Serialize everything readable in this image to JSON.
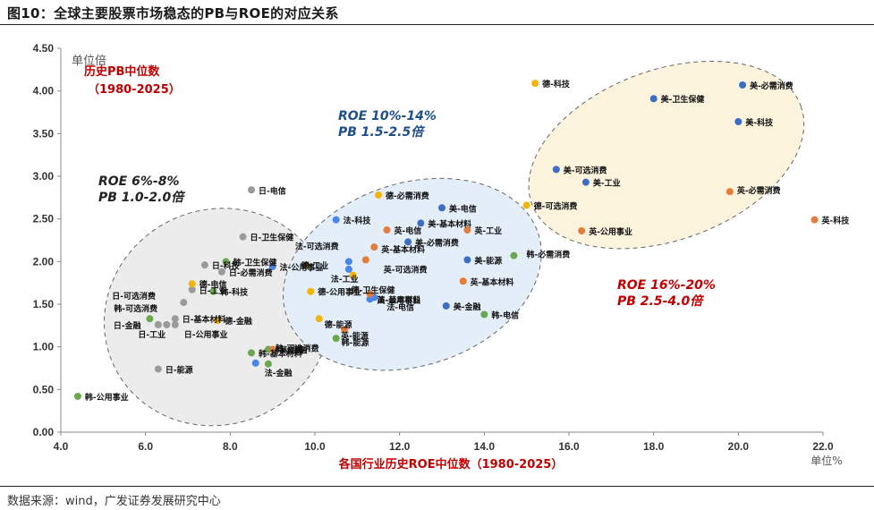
{
  "header": {
    "title": "图10：全球主要股票市场稳态的PB与ROE的对应关系"
  },
  "footer": {
    "source": "数据来源：wind，广发证券发展研究中心"
  },
  "colors": {
    "日": "#9a9a9a",
    "韩": "#6aa84f",
    "德": "#f4b400",
    "法": "#4a86e8",
    "英": "#e67c3a",
    "美": "#3c6fc4",
    "ellipse_low_fill": "#ececec",
    "ellipse_mid_fill": "#e3eef9",
    "ellipse_high_fill": "#fbf3dc"
  },
  "chart_data": {
    "type": "scatter",
    "xlabel": "各国行业历史ROE中位数（1980-2025）",
    "xunit": "单位%",
    "yunit": "单位倍",
    "xlim": [
      4.0,
      22.0
    ],
    "ylim": [
      0.0,
      4.5
    ],
    "xticks": [
      "4.0",
      "6.0",
      "8.0",
      "10.0",
      "12.0",
      "14.0",
      "16.0",
      "18.0",
      "20.0",
      "22.0"
    ],
    "yticks": [
      "0.00",
      "0.50",
      "1.00",
      "1.50",
      "2.00",
      "2.50",
      "3.00",
      "3.50",
      "4.00",
      "4.50"
    ],
    "grid": false,
    "annotations": {
      "history": [
        "历史PB中位数",
        "（1980-2025）"
      ],
      "zone_low": [
        "ROE  6%-8%",
        "PB  1.0-2.0倍"
      ],
      "zone_mid": [
        "ROE  10%-14%",
        "PB  1.5-2.5倍"
      ],
      "zone_high": [
        "ROE  16%-20%",
        "PB  2.5-4.0倍"
      ]
    },
    "points": [
      {
        "label": "日-电信",
        "country": "日",
        "x": 8.5,
        "y": 2.84
      },
      {
        "label": "日-卫生保健",
        "country": "日",
        "x": 8.3,
        "y": 2.29
      },
      {
        "label": "日-科技",
        "country": "日",
        "x": 7.4,
        "y": 1.96
      },
      {
        "label": "日-必需消费",
        "country": "日",
        "x": 7.8,
        "y": 1.88
      },
      {
        "label": "日-工业",
        "country": "日",
        "x": 7.1,
        "y": 1.67
      },
      {
        "label": "日-可选消费",
        "country": "日",
        "x": 6.9,
        "y": 1.52
      },
      {
        "label": "日-金融",
        "country": "日",
        "x": 6.3,
        "y": 1.26
      },
      {
        "label": "日-工业",
        "country": "日",
        "x": 6.5,
        "y": 1.26
      },
      {
        "label": "日-基本材料",
        "country": "日",
        "x": 6.7,
        "y": 1.33
      },
      {
        "label": "日-公用事业",
        "country": "日",
        "x": 6.7,
        "y": 1.26
      },
      {
        "label": "日-能源",
        "country": "日",
        "x": 6.3,
        "y": 0.74
      },
      {
        "label": "韩-卫生保健",
        "country": "韩",
        "x": 7.9,
        "y": 2.0
      },
      {
        "label": "韩-科技",
        "country": "韩",
        "x": 7.6,
        "y": 1.65
      },
      {
        "label": "韩-可选消费",
        "country": "韩",
        "x": 6.1,
        "y": 1.33
      },
      {
        "label": "韩-基本材料",
        "country": "韩",
        "x": 8.5,
        "y": 0.93
      },
      {
        "label": "韩-金融",
        "country": "韩",
        "x": 8.9,
        "y": 0.97
      },
      {
        "label": "韩-可选消费",
        "country": "韩",
        "x": 8.9,
        "y": 0.8
      },
      {
        "label": "韩-能源",
        "country": "韩",
        "x": 10.5,
        "y": 1.1
      },
      {
        "label": "韩-电信",
        "country": "韩",
        "x": 14.0,
        "y": 1.38
      },
      {
        "label": "韩-必需消费",
        "country": "韩",
        "x": 14.7,
        "y": 2.07
      },
      {
        "label": "韩-公用事业",
        "country": "韩",
        "x": 4.4,
        "y": 0.42
      },
      {
        "label": "德-电信",
        "country": "德",
        "x": 7.1,
        "y": 1.74
      },
      {
        "label": "德-金融",
        "country": "德",
        "x": 7.7,
        "y": 1.31
      },
      {
        "label": "德-工业",
        "country": "德",
        "x": 9.8,
        "y": 1.96
      },
      {
        "label": "德-公用事业",
        "country": "德",
        "x": 9.9,
        "y": 1.65
      },
      {
        "label": "德-能源",
        "country": "德",
        "x": 10.1,
        "y": 1.33
      },
      {
        "label": "德-必需消费",
        "country": "德",
        "x": 11.5,
        "y": 2.78
      },
      {
        "label": "德-卫生保健",
        "country": "德",
        "x": 10.9,
        "y": 1.84
      },
      {
        "label": "德-可选消费",
        "country": "德",
        "x": 15.0,
        "y": 2.66
      },
      {
        "label": "德-科技",
        "country": "德",
        "x": 15.2,
        "y": 4.09
      },
      {
        "label": "法-公用事业",
        "country": "法",
        "x": 9.0,
        "y": 1.94
      },
      {
        "label": "法-金融",
        "country": "法",
        "x": 8.6,
        "y": 0.81
      },
      {
        "label": "法-科技",
        "country": "法",
        "x": 10.5,
        "y": 2.49
      },
      {
        "label": "法-可选消费",
        "country": "法",
        "x": 10.8,
        "y": 2.0
      },
      {
        "label": "法-工业",
        "country": "法",
        "x": 10.8,
        "y": 1.91
      },
      {
        "label": "法-基本材料",
        "country": "法",
        "x": 11.3,
        "y": 1.56
      },
      {
        "label": "法-电信",
        "country": "法",
        "x": 11.4,
        "y": 1.58
      },
      {
        "label": "英-电信",
        "country": "英",
        "x": 11.7,
        "y": 2.37
      },
      {
        "label": "英-基本材料",
        "country": "英",
        "x": 11.4,
        "y": 2.17
      },
      {
        "label": "英-可选消费",
        "country": "英",
        "x": 11.2,
        "y": 2.02
      },
      {
        "label": "英-公用事业",
        "country": "英",
        "x": 11.3,
        "y": 1.62
      },
      {
        "label": "英-金融",
        "country": "英",
        "x": 9.0,
        "y": 0.97
      },
      {
        "label": "英-能源",
        "country": "英",
        "x": 10.7,
        "y": 1.2
      },
      {
        "label": "英-工业",
        "country": "英",
        "x": 13.6,
        "y": 2.37
      },
      {
        "label": "英-基本材料",
        "country": "英",
        "x": 13.5,
        "y": 1.77
      },
      {
        "label": "英-必需消费",
        "country": "英",
        "x": 19.8,
        "y": 2.82
      },
      {
        "label": "英-科技",
        "country": "英",
        "x": 21.8,
        "y": 2.49
      },
      {
        "label": "英-公用事业",
        "country": "英",
        "x": 16.3,
        "y": 2.36
      },
      {
        "label": "美-电信",
        "country": "美",
        "x": 13.0,
        "y": 2.63
      },
      {
        "label": "美-基本材料",
        "country": "美",
        "x": 12.5,
        "y": 2.45
      },
      {
        "label": "美-必需消费",
        "country": "美",
        "x": 12.2,
        "y": 2.23
      },
      {
        "label": "美-能源",
        "country": "美",
        "x": 13.6,
        "y": 2.02
      },
      {
        "label": "美-金融",
        "country": "美",
        "x": 13.1,
        "y": 1.48
      },
      {
        "label": "美-可选消费",
        "country": "美",
        "x": 15.7,
        "y": 3.08
      },
      {
        "label": "美-工业",
        "country": "美",
        "x": 16.4,
        "y": 2.93
      },
      {
        "label": "美-卫生保健",
        "country": "美",
        "x": 18.0,
        "y": 3.91
      },
      {
        "label": "美-必需消费",
        "country": "美",
        "x": 20.1,
        "y": 4.07
      },
      {
        "label": "美-科技",
        "country": "美",
        "x": 20.0,
        "y": 3.64
      }
    ]
  }
}
